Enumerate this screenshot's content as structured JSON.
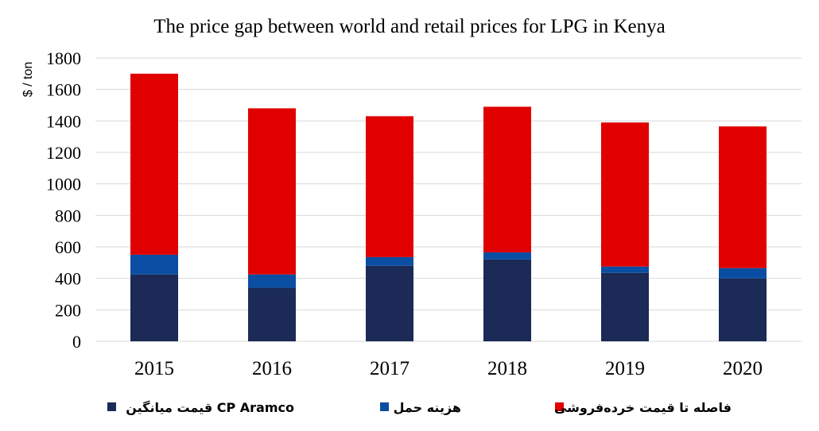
{
  "chart_data": {
    "type": "bar",
    "stacked": true,
    "title": "The price gap between world and retail prices for LPG in Kenya",
    "ylabel": "$ / ton",
    "xlabel": "",
    "ylim": [
      0,
      1800
    ],
    "yticks": [
      0,
      200,
      400,
      600,
      800,
      1000,
      1200,
      1400,
      1600,
      1800
    ],
    "grid": true,
    "legend_position": "bottom",
    "categories": [
      "2015",
      "2016",
      "2017",
      "2018",
      "2019",
      "2020"
    ],
    "series": [
      {
        "name": "قیمت میانگین CP Aramco",
        "color": "#1b2a56",
        "values": [
          425,
          340,
          480,
          520,
          435,
          400
        ]
      },
      {
        "name": "هزینه حمل",
        "color": "#0a4ea3",
        "values": [
          125,
          85,
          55,
          45,
          40,
          65
        ]
      },
      {
        "name": "فاصله تا قیمت خرده‌فروشی",
        "color": "#e00000",
        "values": [
          1150,
          1055,
          895,
          925,
          915,
          900
        ]
      }
    ]
  }
}
